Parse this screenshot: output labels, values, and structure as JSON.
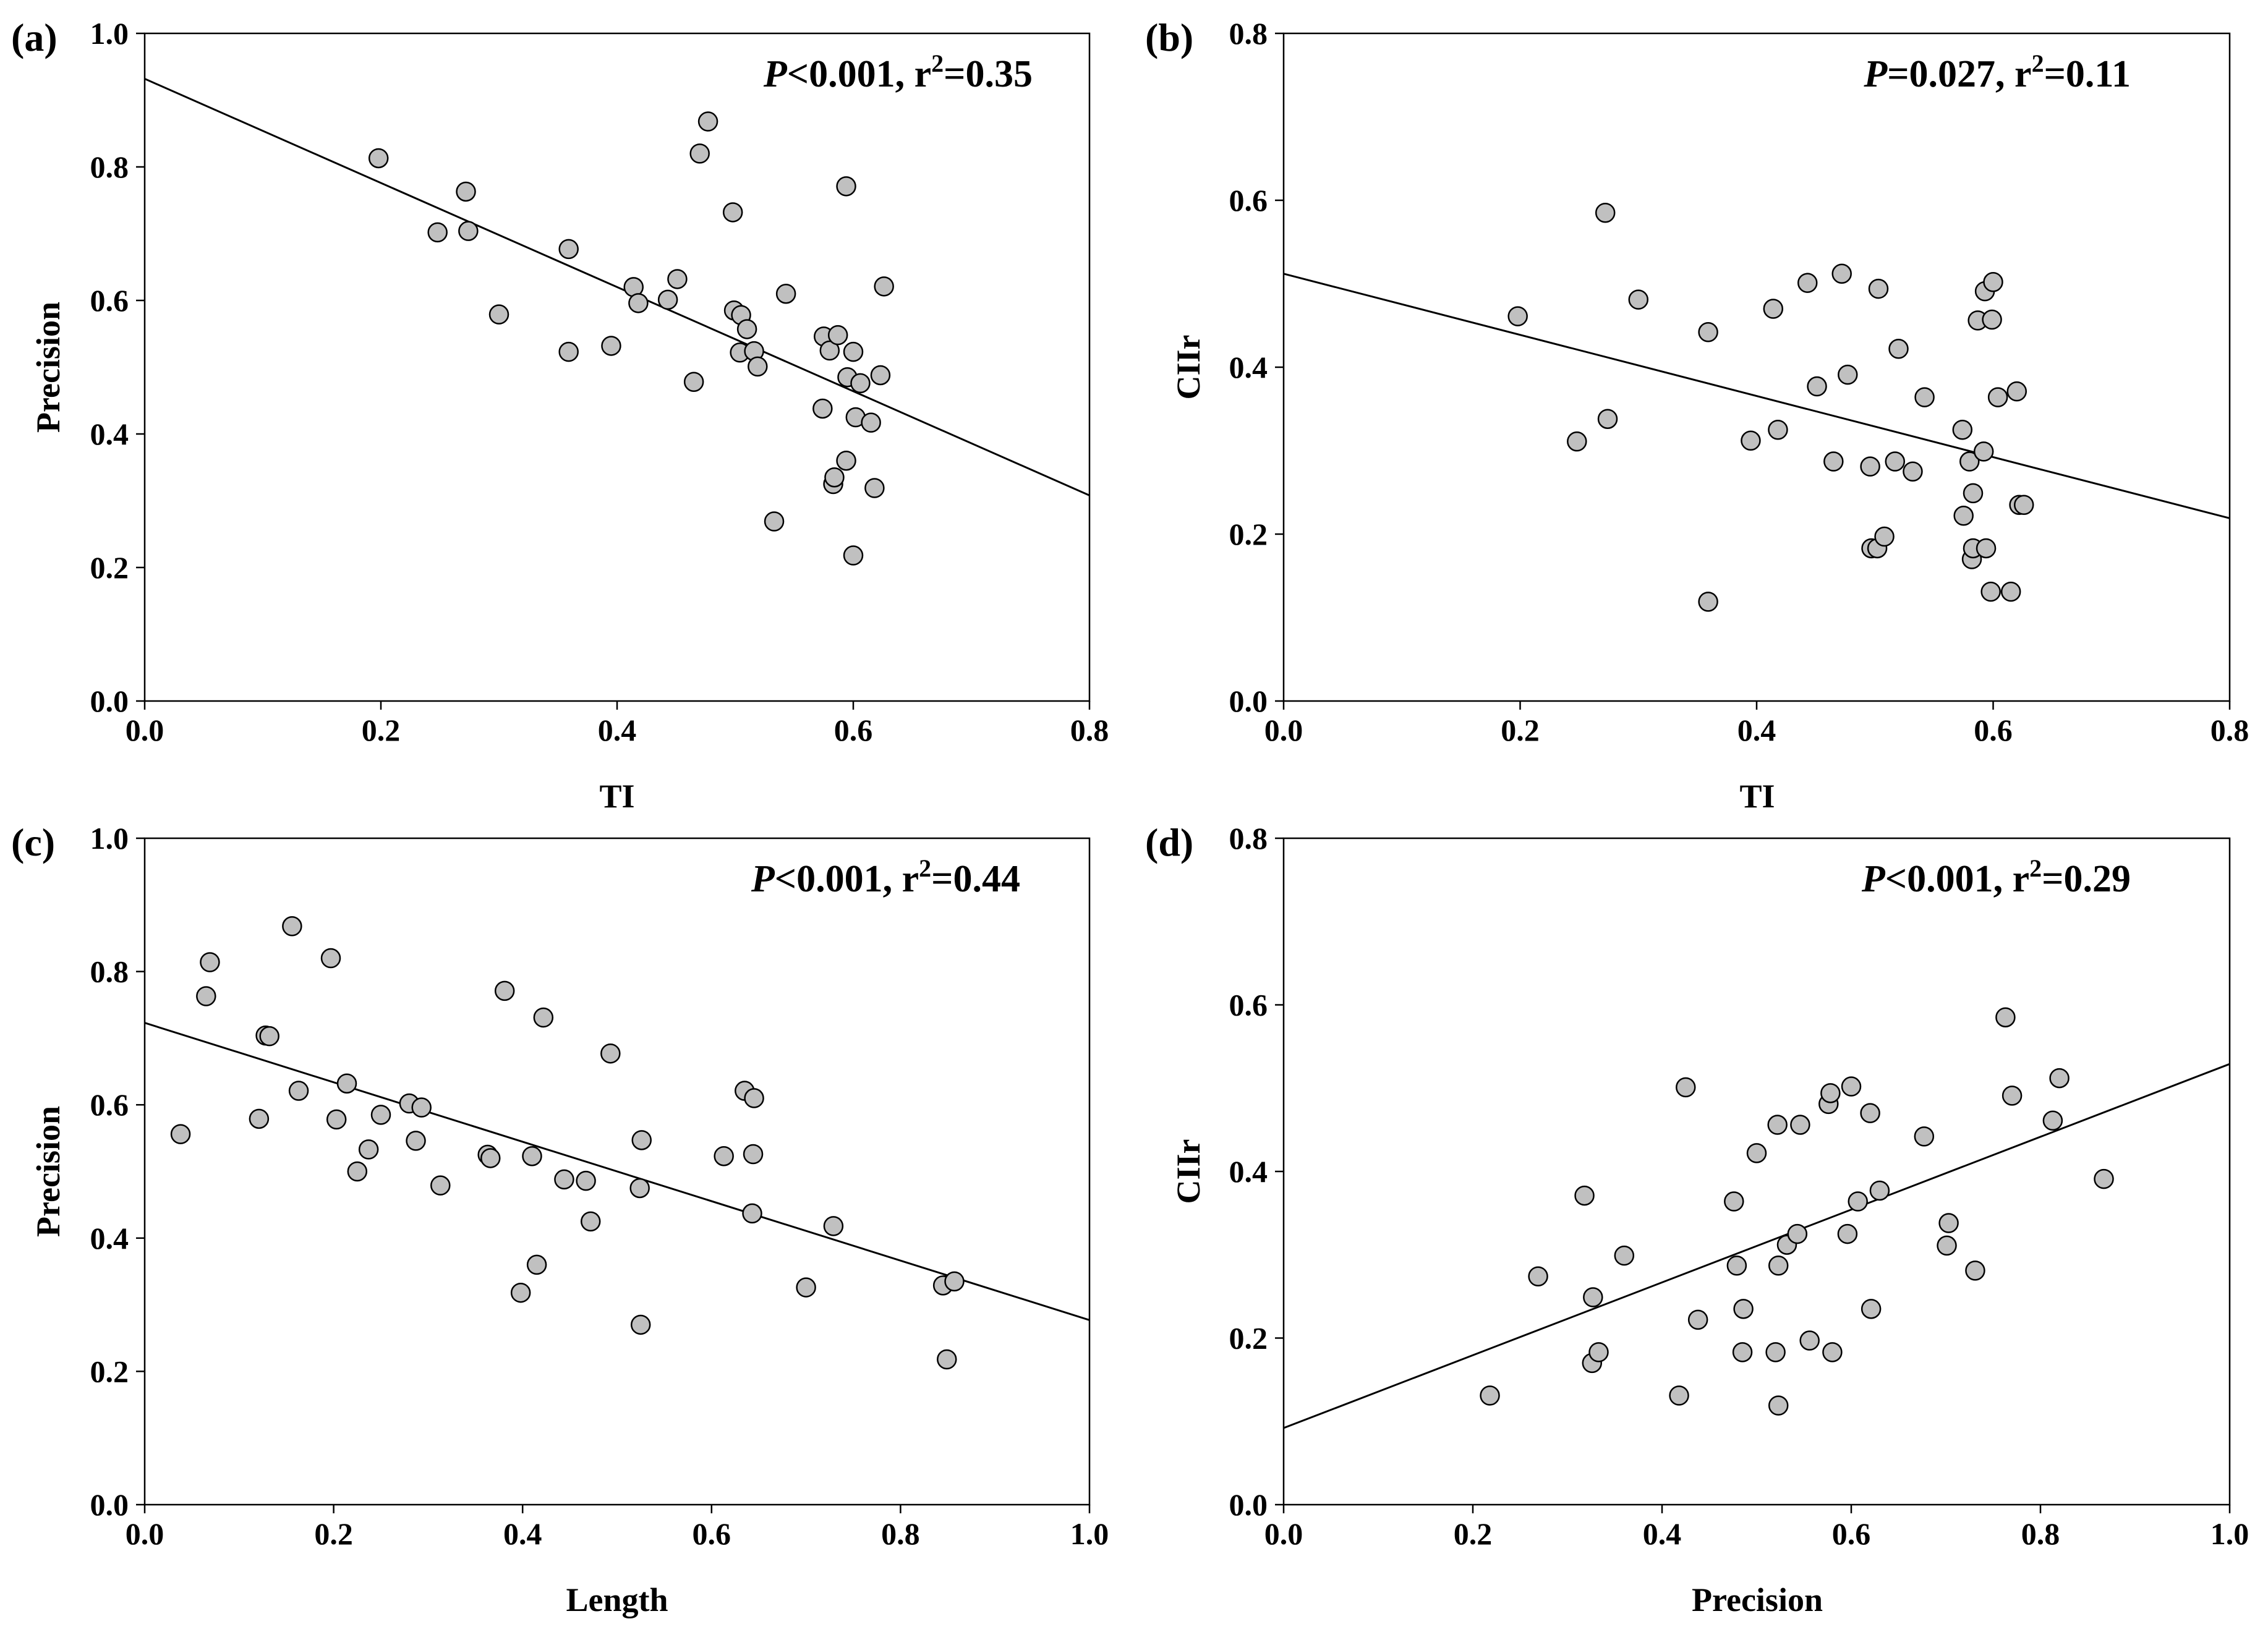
{
  "chart_data": [
    {
      "type": "scatter",
      "panel_label": "(a)",
      "xlabel": "TI",
      "ylabel": "Precision",
      "xlim": [
        0,
        0.8
      ],
      "ylim": [
        0,
        1.0
      ],
      "xticks": [
        "0.0",
        "0.2",
        "0.4",
        "0.6",
        "0.8"
      ],
      "yticks": [
        "0.0",
        "0.2",
        "0.4",
        "0.6",
        "0.8",
        "1.0"
      ],
      "annotation": {
        "p_label": "P",
        "p_value": "<0.001, r",
        "r_exp": "2",
        "r_value": "=0.35"
      },
      "regression": {
        "x1": 0,
        "y1": 0.932,
        "x2": 0.8,
        "y2": 0.308
      },
      "points": [
        [
          0.198,
          0.813
        ],
        [
          0.248,
          0.702
        ],
        [
          0.272,
          0.763
        ],
        [
          0.274,
          0.704
        ],
        [
          0.3,
          0.579
        ],
        [
          0.359,
          0.677
        ],
        [
          0.359,
          0.523
        ],
        [
          0.395,
          0.532
        ],
        [
          0.414,
          0.62
        ],
        [
          0.418,
          0.596
        ],
        [
          0.443,
          0.601
        ],
        [
          0.451,
          0.632
        ],
        [
          0.465,
          0.478
        ],
        [
          0.47,
          0.82
        ],
        [
          0.477,
          0.868
        ],
        [
          0.498,
          0.732
        ],
        [
          0.499,
          0.585
        ],
        [
          0.504,
          0.522
        ],
        [
          0.505,
          0.578
        ],
        [
          0.51,
          0.557
        ],
        [
          0.516,
          0.524
        ],
        [
          0.519,
          0.501
        ],
        [
          0.533,
          0.269
        ],
        [
          0.543,
          0.61
        ],
        [
          0.574,
          0.438
        ],
        [
          0.575,
          0.546
        ],
        [
          0.58,
          0.525
        ],
        [
          0.583,
          0.325
        ],
        [
          0.584,
          0.335
        ],
        [
          0.587,
          0.548
        ],
        [
          0.594,
          0.771
        ],
        [
          0.594,
          0.36
        ],
        [
          0.595,
          0.485
        ],
        [
          0.6,
          0.218
        ],
        [
          0.6,
          0.523
        ],
        [
          0.602,
          0.425
        ],
        [
          0.606,
          0.476
        ],
        [
          0.615,
          0.417
        ],
        [
          0.618,
          0.319
        ],
        [
          0.623,
          0.488
        ],
        [
          0.626,
          0.621
        ]
      ]
    },
    {
      "type": "scatter",
      "panel_label": "(b)",
      "xlabel": "TI",
      "ylabel": "CIIr",
      "xlim": [
        0,
        0.8
      ],
      "ylim": [
        0,
        0.8
      ],
      "xticks": [
        "0.0",
        "0.2",
        "0.4",
        "0.6",
        "0.8"
      ],
      "yticks": [
        "0.0",
        "0.2",
        "0.4",
        "0.6",
        "0.8"
      ],
      "annotation": {
        "p_label": "P",
        "p_value": "=0.027, r",
        "r_exp": "2",
        "r_value": "=0.11"
      },
      "regression": {
        "x1": 0,
        "y1": 0.512,
        "x2": 0.8,
        "y2": 0.219
      },
      "points": [
        [
          0.198,
          0.461
        ],
        [
          0.248,
          0.311
        ],
        [
          0.272,
          0.585
        ],
        [
          0.274,
          0.338
        ],
        [
          0.3,
          0.481
        ],
        [
          0.359,
          0.442
        ],
        [
          0.359,
          0.119
        ],
        [
          0.395,
          0.312
        ],
        [
          0.414,
          0.47
        ],
        [
          0.418,
          0.325
        ],
        [
          0.443,
          0.501
        ],
        [
          0.451,
          0.377
        ],
        [
          0.465,
          0.287
        ],
        [
          0.472,
          0.512
        ],
        [
          0.477,
          0.391
        ],
        [
          0.496,
          0.281
        ],
        [
          0.497,
          0.183
        ],
        [
          0.502,
          0.183
        ],
        [
          0.503,
          0.494
        ],
        [
          0.508,
          0.197
        ],
        [
          0.517,
          0.287
        ],
        [
          0.52,
          0.422
        ],
        [
          0.532,
          0.275
        ],
        [
          0.542,
          0.364
        ],
        [
          0.574,
          0.325
        ],
        [
          0.575,
          0.222
        ],
        [
          0.58,
          0.287
        ],
        [
          0.582,
          0.17
        ],
        [
          0.583,
          0.249
        ],
        [
          0.583,
          0.183
        ],
        [
          0.587,
          0.456
        ],
        [
          0.592,
          0.299
        ],
        [
          0.593,
          0.491
        ],
        [
          0.594,
          0.183
        ],
        [
          0.598,
          0.131
        ],
        [
          0.599,
          0.457
        ],
        [
          0.6,
          0.502
        ],
        [
          0.604,
          0.364
        ],
        [
          0.615,
          0.131
        ],
        [
          0.62,
          0.371
        ],
        [
          0.622,
          0.235
        ],
        [
          0.626,
          0.235
        ]
      ]
    },
    {
      "type": "scatter",
      "panel_label": "(c)",
      "xlabel": "Length",
      "ylabel": "Precision",
      "xlim": [
        0,
        1.0
      ],
      "ylim": [
        0,
        1.0
      ],
      "xticks": [
        "0.0",
        "0.2",
        "0.4",
        "0.6",
        "0.8",
        "1.0"
      ],
      "yticks": [
        "0.0",
        "0.2",
        "0.4",
        "0.6",
        "0.8",
        "1.0"
      ],
      "annotation": {
        "p_label": "P",
        "p_value": "<0.001, r",
        "r_exp": "2",
        "r_value": "=0.44"
      },
      "regression": {
        "x1": 0,
        "y1": 0.723,
        "x2": 1.0,
        "y2": 0.277
      },
      "points": [
        [
          0.038,
          0.556
        ],
        [
          0.065,
          0.763
        ],
        [
          0.069,
          0.814
        ],
        [
          0.121,
          0.579
        ],
        [
          0.128,
          0.704
        ],
        [
          0.132,
          0.703
        ],
        [
          0.156,
          0.868
        ],
        [
          0.163,
          0.621
        ],
        [
          0.197,
          0.82
        ],
        [
          0.203,
          0.578
        ],
        [
          0.214,
          0.632
        ],
        [
          0.225,
          0.5
        ],
        [
          0.237,
          0.533
        ],
        [
          0.25,
          0.585
        ],
        [
          0.28,
          0.602
        ],
        [
          0.287,
          0.546
        ],
        [
          0.293,
          0.596
        ],
        [
          0.313,
          0.479
        ],
        [
          0.363,
          0.525
        ],
        [
          0.366,
          0.52
        ],
        [
          0.381,
          0.771
        ],
        [
          0.398,
          0.318
        ],
        [
          0.41,
          0.523
        ],
        [
          0.415,
          0.36
        ],
        [
          0.422,
          0.731
        ],
        [
          0.444,
          0.488
        ],
        [
          0.467,
          0.486
        ],
        [
          0.472,
          0.425
        ],
        [
          0.493,
          0.677
        ],
        [
          0.524,
          0.475
        ],
        [
          0.525,
          0.27
        ],
        [
          0.526,
          0.547
        ],
        [
          0.613,
          0.523
        ],
        [
          0.635,
          0.621
        ],
        [
          0.643,
          0.437
        ],
        [
          0.644,
          0.526
        ],
        [
          0.645,
          0.61
        ],
        [
          0.7,
          0.326
        ],
        [
          0.729,
          0.418
        ],
        [
          0.845,
          0.329
        ],
        [
          0.849,
          0.218
        ],
        [
          0.857,
          0.335
        ]
      ]
    },
    {
      "type": "scatter",
      "panel_label": "(d)",
      "xlabel": "Precision",
      "ylabel": "CIIr",
      "xlim": [
        0,
        1.0
      ],
      "ylim": [
        0,
        0.8
      ],
      "xticks": [
        "0.0",
        "0.2",
        "0.4",
        "0.6",
        "0.8",
        "1.0"
      ],
      "yticks": [
        "0.0",
        "0.2",
        "0.4",
        "0.6",
        "0.8"
      ],
      "annotation": {
        "p_label": "P",
        "p_value": "<0.001, r",
        "r_exp": "2",
        "r_value": "=0.29"
      },
      "regression": {
        "x1": 0,
        "y1": 0.092,
        "x2": 1.0,
        "y2": 0.529
      },
      "points": [
        [
          0.218,
          0.131
        ],
        [
          0.269,
          0.274
        ],
        [
          0.318,
          0.371
        ],
        [
          0.326,
          0.17
        ],
        [
          0.327,
          0.249
        ],
        [
          0.333,
          0.183
        ],
        [
          0.36,
          0.299
        ],
        [
          0.418,
          0.131
        ],
        [
          0.425,
          0.501
        ],
        [
          0.438,
          0.222
        ],
        [
          0.476,
          0.364
        ],
        [
          0.479,
          0.287
        ],
        [
          0.485,
          0.183
        ],
        [
          0.486,
          0.235
        ],
        [
          0.5,
          0.422
        ],
        [
          0.52,
          0.183
        ],
        [
          0.522,
          0.456
        ],
        [
          0.523,
          0.119
        ],
        [
          0.523,
          0.287
        ],
        [
          0.532,
          0.312
        ],
        [
          0.543,
          0.325
        ],
        [
          0.546,
          0.456
        ],
        [
          0.556,
          0.197
        ],
        [
          0.576,
          0.481
        ],
        [
          0.578,
          0.494
        ],
        [
          0.58,
          0.183
        ],
        [
          0.596,
          0.325
        ],
        [
          0.6,
          0.502
        ],
        [
          0.607,
          0.364
        ],
        [
          0.62,
          0.47
        ],
        [
          0.621,
          0.235
        ],
        [
          0.63,
          0.377
        ],
        [
          0.677,
          0.442
        ],
        [
          0.701,
          0.311
        ],
        [
          0.703,
          0.338
        ],
        [
          0.731,
          0.281
        ],
        [
          0.763,
          0.585
        ],
        [
          0.77,
          0.491
        ],
        [
          0.813,
          0.461
        ],
        [
          0.82,
          0.512
        ],
        [
          0.867,
          0.391
        ]
      ]
    }
  ]
}
